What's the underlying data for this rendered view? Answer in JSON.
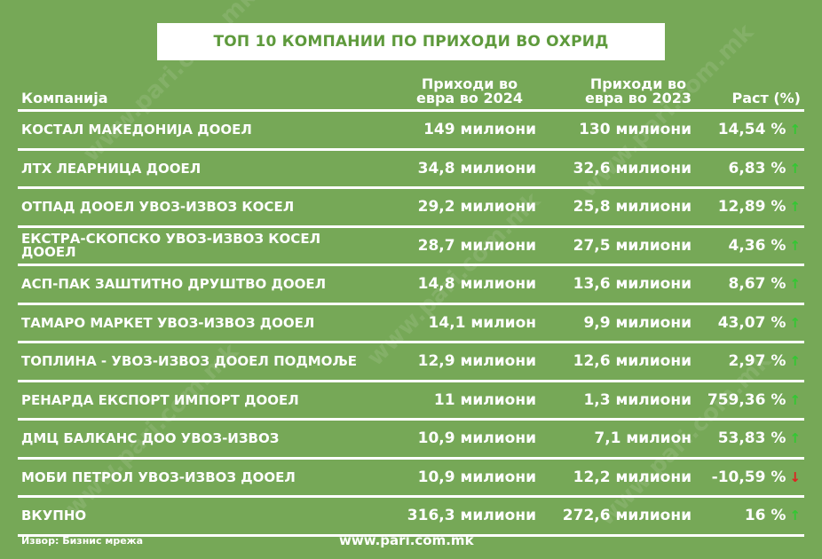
{
  "title": "ТОП 10 КОМПАНИИ ПО ПРИХОДИ ВО ОХРИД",
  "watermark": "www.pari.com.mk",
  "chart_data": {
    "type": "table",
    "columns": [
      "Компанија",
      "Приходи во евра во 2024",
      "Приходи во евра во 2023",
      "Раст (%)"
    ],
    "rows": [
      {
        "company": "КОСТАЛ МАКЕДОНИЈА ДООЕЛ",
        "rev2024": "149 милиони",
        "rev2023": "130 милиони",
        "growth": "14,54 %",
        "trend": "up"
      },
      {
        "company": "ЛТХ ЛЕАРНИЦА ДООЕЛ",
        "rev2024": "34,8 милиони",
        "rev2023": "32,6 милиони",
        "growth": "6,83 %",
        "trend": "up"
      },
      {
        "company": "ОТПАД ДООЕЛ УВОЗ-ИЗВОЗ КОСЕЛ",
        "rev2024": "29,2 милиони",
        "rev2023": "25,8 милиони",
        "growth": "12,89 %",
        "trend": "up"
      },
      {
        "company": "ЕКСТРА-СКОПСКО УВОЗ-ИЗВОЗ КОСЕЛ ДООЕЛ",
        "rev2024": "28,7 милиони",
        "rev2023": "27,5 милиони",
        "growth": "4,36 %",
        "trend": "up"
      },
      {
        "company": "АСП-ПАК ЗАШТИТНО ДРУШТВО ДООЕЛ",
        "rev2024": "14,8 милиони",
        "rev2023": "13,6 милиони",
        "growth": "8,67 %",
        "trend": "up"
      },
      {
        "company": "ТАМАРО МАРКЕТ УВОЗ-ИЗВОЗ ДООЕЛ",
        "rev2024": "14,1 милион",
        "rev2023": "9,9 милиони",
        "growth": "43,07 %",
        "trend": "up"
      },
      {
        "company": "ТОПЛИНА - УВОЗ-ИЗВОЗ ДООЕЛ ПОДМОЉЕ",
        "rev2024": "12,9 милиони",
        "rev2023": "12,6 милиони",
        "growth": "2,97 %",
        "trend": "up"
      },
      {
        "company": "РЕНАРДА ЕКСПОРТ ИМПОРТ ДООЕЛ",
        "rev2024": "11 милиони",
        "rev2023": "1,3 милиони",
        "growth": "759,36 %",
        "trend": "up"
      },
      {
        "company": "ДМЦ БАЛКАНС ДОО УВОЗ-ИЗВОЗ",
        "rev2024": "10,9 милиони",
        "rev2023": "7,1 милион",
        "growth": "53,83 %",
        "trend": "up"
      },
      {
        "company": "МОБИ ПЕТРОЛ УВОЗ-ИЗВОЗ ДООЕЛ",
        "rev2024": "10,9 милиони",
        "rev2023": "12,2 милиони",
        "growth": "-10,59 %",
        "trend": "down"
      },
      {
        "company": "ВКУПНО",
        "rev2024": "316,3 милиони",
        "rev2023": "272,6 милиони",
        "growth": "16 %",
        "trend": "up"
      }
    ]
  },
  "footer": {
    "source": "Извор: Бизнис мрежа",
    "url": "www.pari.com.mk"
  },
  "colors": {
    "background": "#76a857",
    "title_text": "#5e9a3c",
    "arrow_up": "#32c832",
    "arrow_down": "#e02020"
  }
}
